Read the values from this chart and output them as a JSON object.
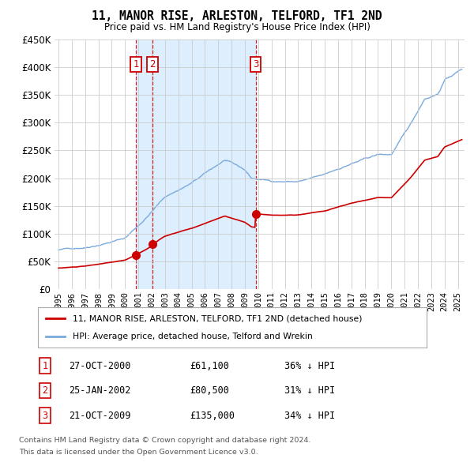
{
  "title": "11, MANOR RISE, ARLESTON, TELFORD, TF1 2ND",
  "subtitle": "Price paid vs. HM Land Registry's House Price Index (HPI)",
  "ylim": [
    0,
    450000
  ],
  "yticks": [
    0,
    50000,
    100000,
    150000,
    200000,
    250000,
    300000,
    350000,
    400000,
    450000
  ],
  "xlim_start": 1994.7,
  "xlim_end": 2025.5,
  "transactions": [
    {
      "label": "1",
      "date_str": "27-OCT-2000",
      "year": 2000.82,
      "price": 61100,
      "pct": "36% ↓ HPI"
    },
    {
      "label": "2",
      "date_str": "25-JAN-2002",
      "year": 2002.07,
      "price": 80500,
      "pct": "31% ↓ HPI"
    },
    {
      "label": "3",
      "date_str": "21-OCT-2009",
      "year": 2009.81,
      "price": 135000,
      "pct": "34% ↓ HPI"
    }
  ],
  "legend_property": "11, MANOR RISE, ARLESTON, TELFORD, TF1 2ND (detached house)",
  "legend_hpi": "HPI: Average price, detached house, Telford and Wrekin",
  "footer1": "Contains HM Land Registry data © Crown copyright and database right 2024.",
  "footer2": "This data is licensed under the Open Government Licence v3.0.",
  "property_color": "#cc0000",
  "hpi_color": "#7aaadd",
  "shade_color": "#ddeeff",
  "bg_color": "#ffffff",
  "grid_color": "#cccccc"
}
